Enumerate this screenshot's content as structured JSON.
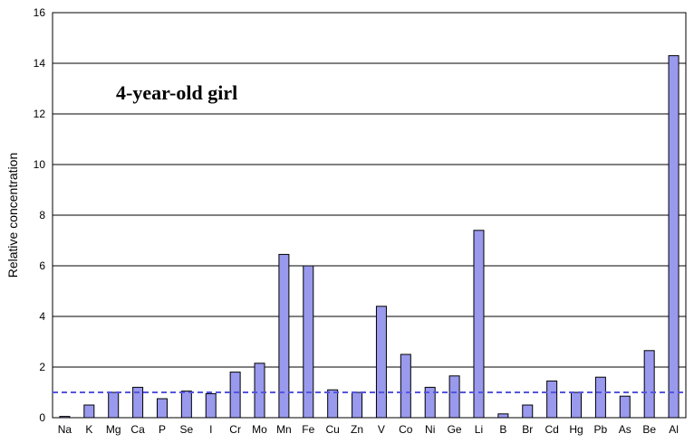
{
  "chart_data": {
    "type": "bar",
    "title": "",
    "annotation": "4-year-old girl",
    "xlabel": "",
    "ylabel": "Relative concentration",
    "ylim": [
      0,
      16
    ],
    "yticks": [
      0,
      2,
      4,
      6,
      8,
      10,
      12,
      14,
      16
    ],
    "grid": true,
    "legend": "none",
    "reference_line": {
      "value": 1.0,
      "style": "dashed",
      "color": "#5555dd"
    },
    "bar_color": "#9999ee",
    "bar_stroke": "#000000",
    "categories": [
      "Na",
      "K",
      "Mg",
      "Ca",
      "P",
      "Se",
      "I",
      "Cr",
      "Mo",
      "Mn",
      "Fe",
      "Cu",
      "Zn",
      "V",
      "Co",
      "Ni",
      "Ge",
      "Li",
      "B",
      "Br",
      "Cd",
      "Hg",
      "Pb",
      "As",
      "Be",
      "Al"
    ],
    "values": [
      0.05,
      0.5,
      1.0,
      1.2,
      0.75,
      1.05,
      0.95,
      1.8,
      2.15,
      6.45,
      6.0,
      1.1,
      1.0,
      4.4,
      2.5,
      1.2,
      1.65,
      7.4,
      0.15,
      0.5,
      1.45,
      1.0,
      1.6,
      0.85,
      2.65,
      14.3
    ]
  }
}
